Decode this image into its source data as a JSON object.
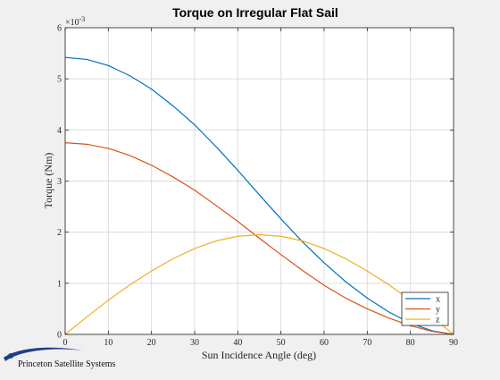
{
  "window": {
    "background": "#f0f0f0"
  },
  "brand": {
    "text": "Princeton Satellite Systems"
  },
  "chart_data": {
    "type": "line",
    "title": "Torque on Irregular Flat Sail",
    "xlabel": "Sun Incidence Angle (deg)",
    "ylabel": "Torque (Nm)",
    "y_exponent_label": "×10",
    "y_exponent_value": "-3",
    "xlim": [
      0,
      90
    ],
    "ylim": [
      0,
      0.006
    ],
    "x_ticks": [
      0,
      10,
      20,
      30,
      40,
      50,
      60,
      70,
      80,
      90
    ],
    "y_ticks": [
      0,
      0.001,
      0.002,
      0.003,
      0.004,
      0.005,
      0.006
    ],
    "y_tick_labels": [
      "0",
      "1",
      "2",
      "3",
      "4",
      "5",
      "6"
    ],
    "grid": true,
    "legend_location": "bottom-right",
    "x": [
      0,
      5,
      10,
      15,
      20,
      25,
      30,
      35,
      40,
      45,
      50,
      55,
      60,
      65,
      70,
      75,
      80,
      85,
      90
    ],
    "series": [
      {
        "name": "x",
        "color": "#0072bd",
        "values": [
          0.00542,
          0.00538,
          0.00526,
          0.00506,
          0.0048,
          0.00447,
          0.0041,
          0.00367,
          0.00321,
          0.00273,
          0.00226,
          0.00181,
          0.0014,
          0.00103,
          0.00071,
          0.00044,
          0.00022,
          7e-05,
          0.0
        ]
      },
      {
        "name": "y",
        "color": "#d95319",
        "values": [
          0.00375,
          0.00372,
          0.00364,
          0.0035,
          0.00331,
          0.00308,
          0.00282,
          0.00252,
          0.00221,
          0.00188,
          0.00156,
          0.00125,
          0.00096,
          0.00071,
          0.0005,
          0.00032,
          0.00017,
          6e-05,
          0.0
        ]
      },
      {
        "name": "z",
        "color": "#edb120",
        "values": [
          0.0,
          0.00034,
          0.00067,
          0.00097,
          0.00124,
          0.00148,
          0.00168,
          0.00183,
          0.00192,
          0.00195,
          0.00192,
          0.00183,
          0.00168,
          0.00148,
          0.00124,
          0.00097,
          0.00067,
          0.00034,
          0.0
        ]
      }
    ]
  }
}
